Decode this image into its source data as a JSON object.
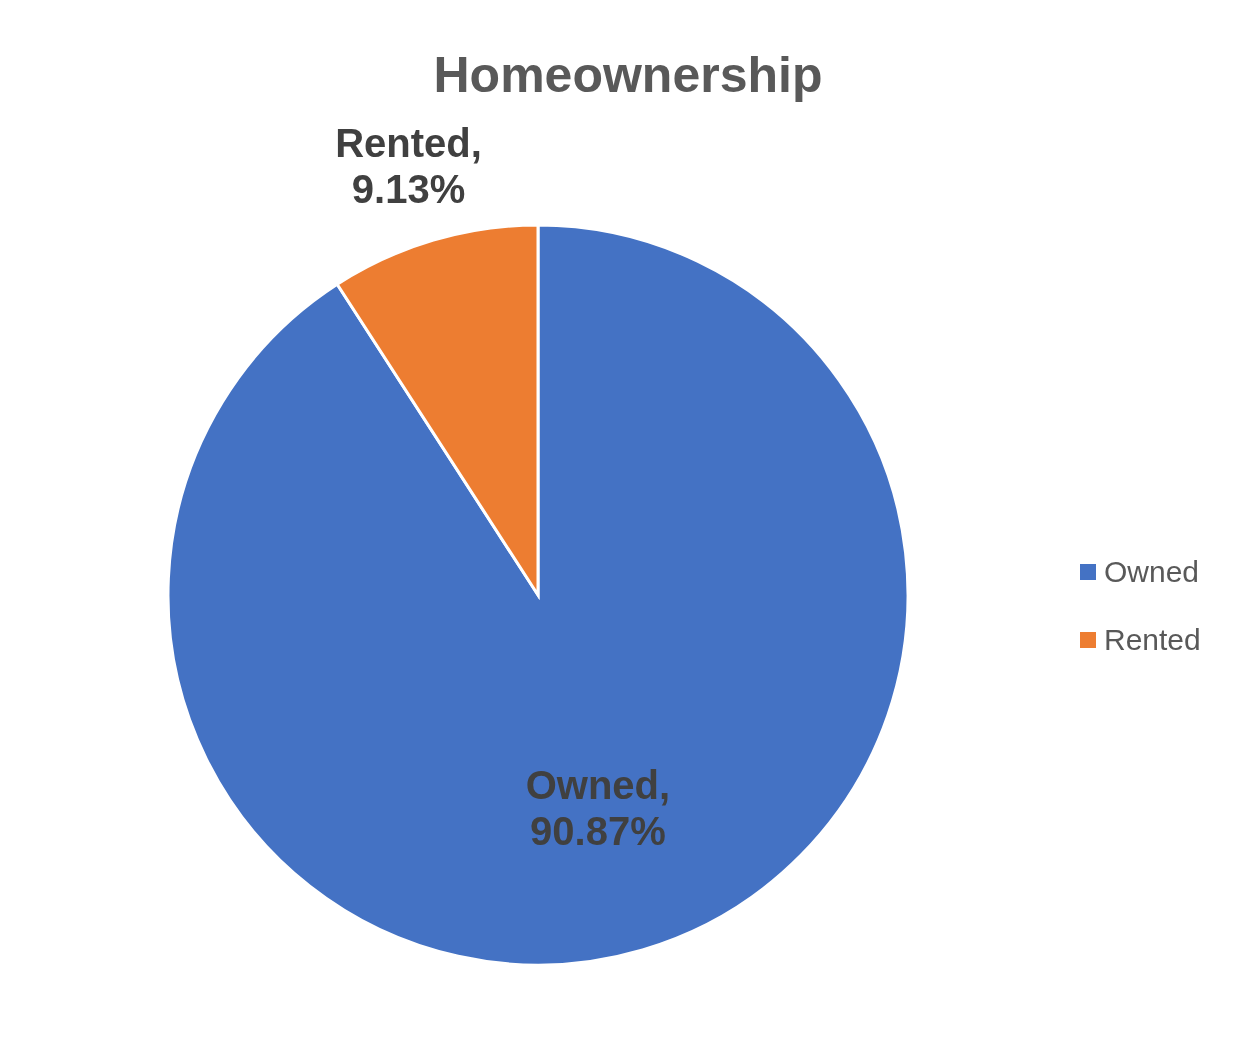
{
  "chart_data": {
    "type": "pie",
    "title": "Homeownership",
    "categories": [
      "Owned",
      "Rented"
    ],
    "values": [
      90.87,
      9.13
    ],
    "colors": [
      "#4472c4",
      "#ed7d31"
    ],
    "value_labels": [
      "Owned, 90.87%",
      "Rented, 9.13%"
    ],
    "legend": "right"
  }
}
